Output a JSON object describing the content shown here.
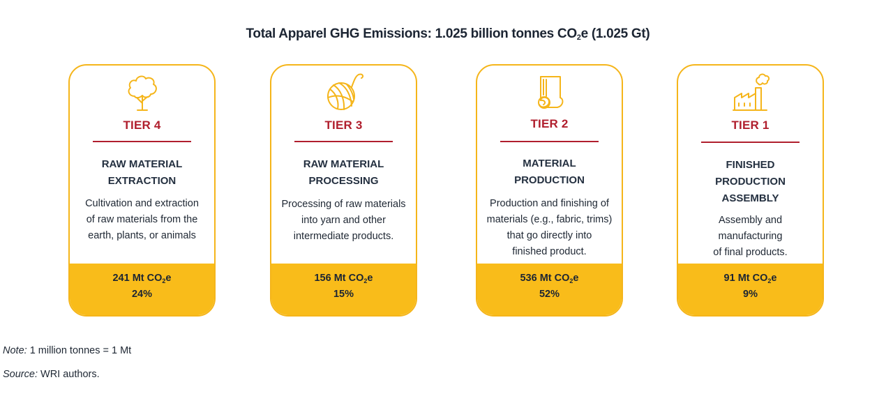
{
  "title": {
    "prefix": "Total Apparel GHG Emissions: 1.025 billion tonnes CO",
    "sub": "2",
    "suffix": "e (1.025 Gt)"
  },
  "tiers": [
    {
      "label": "TIER 4",
      "heading_lines": [
        "RAW MATERIAL",
        "EXTRACTION"
      ],
      "description_lines": [
        "Cultivation and extraction",
        "of raw materials from the",
        "earth, plants, or animals"
      ],
      "emissions_value": "241 Mt CO",
      "emissions_sub": "2",
      "emissions_suffix": "e",
      "share": "24%",
      "icon": "cotton-plant-icon"
    },
    {
      "label": "TIER 3",
      "heading_lines": [
        "RAW MATERIAL",
        "PROCESSING"
      ],
      "description_lines": [
        "Processing of raw materials",
        "into yarn and other",
        "intermediate products."
      ],
      "emissions_value": "156 Mt CO",
      "emissions_sub": "2",
      "emissions_suffix": "e",
      "share": "15%",
      "icon": "yarn-ball-icon"
    },
    {
      "label": "TIER 2",
      "heading_lines": [
        "MATERIAL",
        "PRODUCTION"
      ],
      "description_lines": [
        "Production and finishing of",
        "materials (e.g., fabric, trims)",
        "that go directly into",
        "finished product."
      ],
      "emissions_value": "536 Mt CO",
      "emissions_sub": "2",
      "emissions_suffix": "e",
      "share": "52%",
      "icon": "fabric-roll-icon"
    },
    {
      "label": "TIER 1",
      "heading_lines": [
        "FINISHED",
        "PRODUCTION",
        "ASSEMBLY"
      ],
      "description_lines": [
        "Assembly and manufacturing",
        "of final products."
      ],
      "emissions_value": "91 Mt CO",
      "emissions_sub": "2",
      "emissions_suffix": "e",
      "share": "9%",
      "icon": "factory-icon"
    }
  ],
  "note": {
    "label": "Note:",
    "text": " 1 million tonnes = 1 Mt"
  },
  "source": {
    "label": "Source:",
    "text": " WRI authors."
  },
  "colors": {
    "accent": "#f9bc1a",
    "border": "#f5b51a",
    "tier_red": "#b01e2d",
    "text": "#1c2533"
  }
}
